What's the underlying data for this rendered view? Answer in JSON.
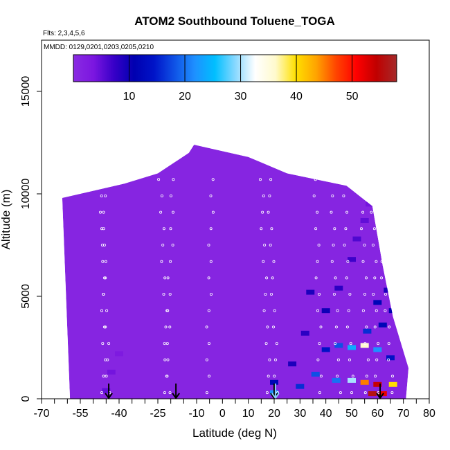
{
  "chart_data": {
    "type": "heatmap",
    "title": "ATOM2 Southbound Toluene_TOGA",
    "flights_note": "Flts: 2,3,4,5,6",
    "dates_note": "MMDD: 0129,0201,0203,0205,0210",
    "xlabel": "Latitude (deg N)",
    "ylabel": "Altitude (m)",
    "xlim": [
      -70,
      80
    ],
    "ylim": [
      0,
      17500
    ],
    "x_ticks": [
      -70,
      -55,
      -40,
      -25,
      -10,
      0,
      10,
      20,
      30,
      40,
      50,
      60,
      70,
      80
    ],
    "y_ticks": [
      0,
      5000,
      10000,
      15000
    ],
    "colorbar": {
      "range": [
        0,
        58
      ],
      "ticks": [
        10,
        20,
        30,
        40,
        50
      ],
      "colors": [
        "#8a2be2",
        "#7b16e0",
        "#3800c8",
        "#0000b0",
        "#0014c8",
        "#0f52e6",
        "#1e90ff",
        "#00bfff",
        "#87d8ff",
        "#ffffff",
        "#fffacd",
        "#ffe000",
        "#ffa500",
        "#ff4500",
        "#ff0000",
        "#c00000",
        "#a52a2a"
      ],
      "placement": "top inside plot"
    },
    "background_value": 1,
    "curtain_shape": [
      [
        -59,
        0
      ],
      [
        -62,
        9800
      ],
      [
        -38,
        10500
      ],
      [
        -25,
        11000
      ],
      [
        -13,
        12000
      ],
      [
        -11,
        12400
      ],
      [
        10,
        11800
      ],
      [
        25,
        11000
      ],
      [
        48,
        10400
      ],
      [
        58,
        9400
      ],
      [
        62,
        6500
      ],
      [
        66,
        4000
      ],
      [
        72,
        1500
      ],
      [
        71,
        0
      ]
    ],
    "enhanced_cells": [
      {
        "lat": -45,
        "alt": 400,
        "value": 5
      },
      {
        "lat": -43,
        "alt": 1300,
        "value": 4
      },
      {
        "lat": -40,
        "alt": 2200,
        "value": 3
      },
      {
        "lat": 20,
        "alt": 800,
        "value": 12
      },
      {
        "lat": 20,
        "alt": 300,
        "value": 22
      },
      {
        "lat": 27,
        "alt": 1700,
        "value": 9
      },
      {
        "lat": 32,
        "alt": 3200,
        "value": 8
      },
      {
        "lat": 34,
        "alt": 5200,
        "value": 9
      },
      {
        "lat": 40,
        "alt": 4300,
        "value": 10
      },
      {
        "lat": 45,
        "alt": 5400,
        "value": 8
      },
      {
        "lat": 50,
        "alt": 6800,
        "value": 7
      },
      {
        "lat": 52,
        "alt": 7800,
        "value": 6
      },
      {
        "lat": 55,
        "alt": 8700,
        "value": 5
      },
      {
        "lat": 57,
        "alt": 9500,
        "value": 4
      },
      {
        "lat": 40,
        "alt": 2400,
        "value": 14
      },
      {
        "lat": 45,
        "alt": 2600,
        "value": 18
      },
      {
        "lat": 50,
        "alt": 2500,
        "value": 24
      },
      {
        "lat": 55,
        "alt": 2600,
        "value": 36
      },
      {
        "lat": 60,
        "alt": 2400,
        "value": 22
      },
      {
        "lat": 65,
        "alt": 2000,
        "value": 14
      },
      {
        "lat": 56,
        "alt": 3300,
        "value": 16
      },
      {
        "lat": 62,
        "alt": 3600,
        "value": 12
      },
      {
        "lat": 60,
        "alt": 4700,
        "value": 12
      },
      {
        "lat": 64,
        "alt": 5300,
        "value": 9
      },
      {
        "lat": 66,
        "alt": 4300,
        "value": 11
      },
      {
        "lat": 44,
        "alt": 900,
        "value": 20
      },
      {
        "lat": 50,
        "alt": 900,
        "value": 30
      },
      {
        "lat": 55,
        "alt": 800,
        "value": 45
      },
      {
        "lat": 60,
        "alt": 700,
        "value": 54
      },
      {
        "lat": 66,
        "alt": 700,
        "value": 40
      },
      {
        "lat": 58,
        "alt": 250,
        "value": 56
      },
      {
        "lat": 62,
        "alt": 250,
        "value": 52
      },
      {
        "lat": 36,
        "alt": 1200,
        "value": 18
      },
      {
        "lat": 30,
        "alt": 600,
        "value": 16
      }
    ],
    "sample_tracks": [
      {
        "lat_bottom": -46,
        "lat_top": -46
      },
      {
        "lat_bottom": -44,
        "lat_top": -47
      },
      {
        "lat_bottom": -22,
        "lat_top": -19
      },
      {
        "lat_bottom": -21,
        "lat_top": -24
      },
      {
        "lat_bottom": -6,
        "lat_top": -4
      },
      {
        "lat_bottom": 18,
        "lat_top": 15
      },
      {
        "lat_bottom": 21,
        "lat_top": 18
      },
      {
        "lat_bottom": 38,
        "lat_top": 36
      },
      {
        "lat_bottom": 45,
        "lat_top": 42
      },
      {
        "lat_bottom": 50,
        "lat_top": 47
      },
      {
        "lat_bottom": 56,
        "lat_top": 54
      },
      {
        "lat_bottom": 60,
        "lat_top": 58
      },
      {
        "lat_bottom": 66,
        "lat_top": 59
      }
    ],
    "surface_markers": [
      {
        "lat": -44,
        "color": "#000000"
      },
      {
        "lat": -18,
        "color": "#000000"
      },
      {
        "lat": 20,
        "color": "#000000"
      },
      {
        "lat": 20.5,
        "color": "#87cefa"
      },
      {
        "lat": 61,
        "color": "#000000"
      }
    ]
  }
}
